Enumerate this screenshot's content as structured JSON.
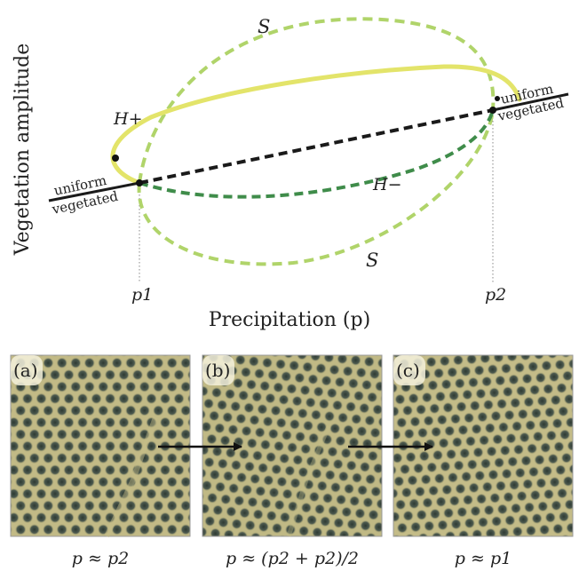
{
  "axes": {
    "ylabel": "Vegetation amplitude",
    "xlabel": "Precipitation (p)",
    "p1_tick": "p1",
    "p2_tick": "p2"
  },
  "labels": {
    "left_top": "uniform",
    "left_bottom": "vegetated",
    "right_top": "uniform",
    "right_bottom": "vegetated",
    "s_top": "S",
    "s_bottom": "S",
    "h_plus": "H+",
    "h_minus": "H−"
  },
  "panels": [
    {
      "tag": "(a)",
      "caption": "p ≈ p2"
    },
    {
      "tag": "(b)",
      "caption": "p ≈ (p2 + p2)/2"
    },
    {
      "tag": "(c)",
      "caption": "p ≈ p1"
    }
  ],
  "colors": {
    "h_plus": "#e3e46a",
    "s_branch": "#b0d46a",
    "h_minus": "#3f8c4a",
    "unstable": "#1a1a1a",
    "pattern_bg": "#b7b07a",
    "pattern_spot": "#3e4a42"
  }
}
